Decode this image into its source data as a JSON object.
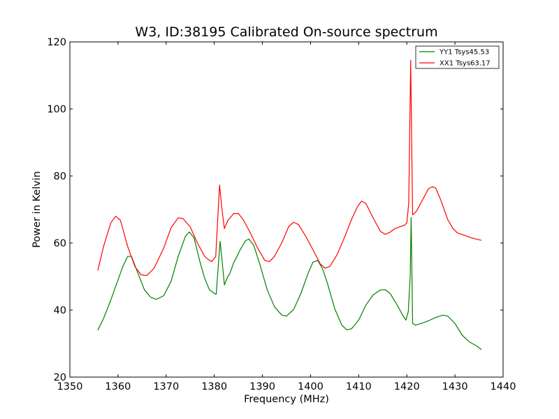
{
  "chart_data": {
    "type": "line",
    "title": "W3, ID:38195 Calibrated On-source spectrum",
    "xlabel": "Frequency (MHz)",
    "ylabel": "Power in Kelvin",
    "xlim": [
      1350,
      1440
    ],
    "ylim": [
      20,
      120
    ],
    "xticks": [
      "1350",
      "1360",
      "1370",
      "1380",
      "1390",
      "1400",
      "1410",
      "1420",
      "1430",
      "1440"
    ],
    "yticks": [
      "20",
      "40",
      "60",
      "80",
      "100",
      "120"
    ],
    "grid": false,
    "legend_position": "top-right",
    "series": [
      {
        "name": "YY1 Tsys45.53",
        "color": "#008000",
        "points": [
          [
            1355.8,
            34.0
          ],
          [
            1357.0,
            37.5
          ],
          [
            1358.5,
            43.0
          ],
          [
            1360.0,
            49.0
          ],
          [
            1361.0,
            53.0
          ],
          [
            1362.0,
            56.0
          ],
          [
            1362.8,
            56.0
          ],
          [
            1364.0,
            51.5
          ],
          [
            1365.5,
            46.0
          ],
          [
            1366.8,
            43.8
          ],
          [
            1368.0,
            43.2
          ],
          [
            1369.5,
            44.3
          ],
          [
            1371.0,
            48.5
          ],
          [
            1372.5,
            56.0
          ],
          [
            1374.0,
            62.0
          ],
          [
            1374.8,
            63.3
          ],
          [
            1375.8,
            61.5
          ],
          [
            1377.0,
            54.5
          ],
          [
            1378.0,
            49.5
          ],
          [
            1379.0,
            46.0
          ],
          [
            1380.0,
            45.0
          ],
          [
            1380.4,
            44.7
          ],
          [
            1381.2,
            60.5
          ],
          [
            1381.6,
            55.0
          ],
          [
            1382.1,
            47.5
          ],
          [
            1382.8,
            50.0
          ],
          [
            1383.2,
            50.8
          ],
          [
            1384.0,
            54.0
          ],
          [
            1385.5,
            58.3
          ],
          [
            1386.5,
            60.7
          ],
          [
            1387.2,
            61.2
          ],
          [
            1388.2,
            59.3
          ],
          [
            1389.5,
            53.5
          ],
          [
            1391.0,
            46.0
          ],
          [
            1392.5,
            41.0
          ],
          [
            1394.0,
            38.5
          ],
          [
            1395.0,
            38.2
          ],
          [
            1396.5,
            40.2
          ],
          [
            1398.0,
            45.0
          ],
          [
            1399.5,
            51.0
          ],
          [
            1400.5,
            54.3
          ],
          [
            1401.5,
            54.8
          ],
          [
            1402.5,
            52.3
          ],
          [
            1403.5,
            48.0
          ],
          [
            1405.0,
            40.5
          ],
          [
            1406.5,
            35.5
          ],
          [
            1407.5,
            34.1
          ],
          [
            1408.5,
            34.4
          ],
          [
            1410.0,
            37.0
          ],
          [
            1411.5,
            41.5
          ],
          [
            1413.0,
            44.5
          ],
          [
            1414.5,
            46.0
          ],
          [
            1415.5,
            46.1
          ],
          [
            1416.5,
            45.0
          ],
          [
            1418.0,
            41.5
          ],
          [
            1419.0,
            38.8
          ],
          [
            1419.8,
            37.0
          ],
          [
            1420.3,
            39.5
          ],
          [
            1420.7,
            50.0
          ],
          [
            1420.9,
            67.6
          ],
          [
            1421.2,
            36.0
          ],
          [
            1421.8,
            35.5
          ],
          [
            1423.0,
            36.0
          ],
          [
            1424.5,
            36.8
          ],
          [
            1426.0,
            37.8
          ],
          [
            1427.5,
            38.5
          ],
          [
            1428.5,
            38.2
          ],
          [
            1430.0,
            36.0
          ],
          [
            1431.5,
            32.5
          ],
          [
            1433.0,
            30.5
          ],
          [
            1434.5,
            29.3
          ],
          [
            1435.5,
            28.2
          ]
        ]
      },
      {
        "name": "XX1 Tsys63.17",
        "color": "#ff0000",
        "points": [
          [
            1355.8,
            51.8
          ],
          [
            1357.0,
            59.0
          ],
          [
            1358.5,
            66.0
          ],
          [
            1359.5,
            68.0
          ],
          [
            1360.5,
            66.8
          ],
          [
            1362.0,
            59.0
          ],
          [
            1363.5,
            53.0
          ],
          [
            1364.8,
            50.5
          ],
          [
            1366.0,
            50.3
          ],
          [
            1367.5,
            52.5
          ],
          [
            1369.5,
            58.5
          ],
          [
            1371.0,
            64.5
          ],
          [
            1372.5,
            67.5
          ],
          [
            1373.5,
            67.3
          ],
          [
            1375.0,
            64.8
          ],
          [
            1376.5,
            60.0
          ],
          [
            1378.0,
            56.0
          ],
          [
            1379.0,
            54.8
          ],
          [
            1379.5,
            54.5
          ],
          [
            1380.3,
            56.0
          ],
          [
            1381.1,
            77.3
          ],
          [
            1381.6,
            70.0
          ],
          [
            1382.1,
            64.3
          ],
          [
            1382.8,
            66.7
          ],
          [
            1383.3,
            67.5
          ],
          [
            1384.0,
            68.8
          ],
          [
            1385.0,
            68.8
          ],
          [
            1386.0,
            67.0
          ],
          [
            1387.5,
            63.0
          ],
          [
            1389.0,
            58.5
          ],
          [
            1390.5,
            54.8
          ],
          [
            1391.5,
            54.5
          ],
          [
            1392.5,
            56.0
          ],
          [
            1394.0,
            60.0
          ],
          [
            1395.5,
            65.0
          ],
          [
            1396.5,
            66.2
          ],
          [
            1397.5,
            65.5
          ],
          [
            1399.0,
            62.0
          ],
          [
            1400.5,
            58.0
          ],
          [
            1402.0,
            53.8
          ],
          [
            1403.0,
            52.5
          ],
          [
            1404.0,
            53.0
          ],
          [
            1405.5,
            56.5
          ],
          [
            1407.0,
            61.5
          ],
          [
            1408.5,
            67.0
          ],
          [
            1409.8,
            71.0
          ],
          [
            1410.6,
            72.5
          ],
          [
            1411.5,
            71.8
          ],
          [
            1413.0,
            67.5
          ],
          [
            1414.5,
            63.5
          ],
          [
            1415.5,
            62.6
          ],
          [
            1416.5,
            63.2
          ],
          [
            1417.5,
            64.3
          ],
          [
            1418.5,
            64.8
          ],
          [
            1419.5,
            65.3
          ],
          [
            1420.0,
            66.0
          ],
          [
            1420.4,
            72.0
          ],
          [
            1420.8,
            114.5
          ],
          [
            1421.2,
            68.4
          ],
          [
            1422.0,
            69.5
          ],
          [
            1423.5,
            73.5
          ],
          [
            1424.5,
            76.2
          ],
          [
            1425.3,
            76.8
          ],
          [
            1426.0,
            76.4
          ],
          [
            1427.0,
            73.0
          ],
          [
            1428.5,
            67.0
          ],
          [
            1429.5,
            64.5
          ],
          [
            1430.5,
            63.0
          ],
          [
            1432.0,
            62.3
          ],
          [
            1433.5,
            61.5
          ],
          [
            1435.5,
            60.8
          ]
        ]
      }
    ]
  }
}
